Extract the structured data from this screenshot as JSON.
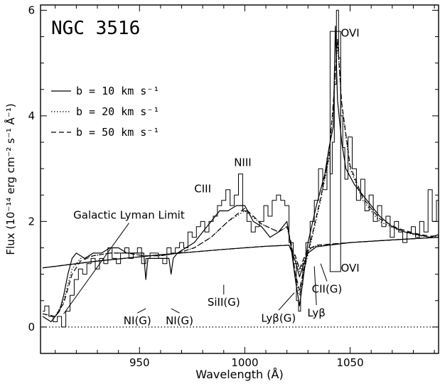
{
  "chart_data": {
    "type": "line",
    "title": "NGC 3516",
    "xlabel": "Wavelength (Å)",
    "ylabel": "Flux (10⁻¹⁴ erg cm⁻² s⁻¹ Å⁻¹)",
    "xlim": [
      903,
      1092
    ],
    "ylim": [
      -0.5,
      6.1
    ],
    "x_ticks": [
      950,
      1000,
      1050
    ],
    "y_ticks": [
      0,
      2,
      4,
      6
    ],
    "grid": false,
    "legend_placement": "upper-left",
    "legend": [
      {
        "label": "b = 10 km s⁻¹",
        "style": "solid"
      },
      {
        "label": "b = 20 km s⁻¹",
        "style": "dotted"
      },
      {
        "label": "b = 50 km s⁻¹",
        "style": "dashed"
      }
    ],
    "series": [
      {
        "style": "histogram",
        "x": [
          904,
          906,
          908,
          910,
          912,
          914,
          916,
          918,
          920,
          922,
          924,
          926,
          928,
          930,
          932,
          934,
          936,
          938,
          940,
          942,
          944,
          946,
          948,
          950,
          952,
          954,
          956,
          958,
          960,
          962,
          964,
          966,
          968,
          970,
          972,
          974,
          976,
          978,
          980,
          982,
          984,
          986,
          988,
          990,
          992,
          994,
          996,
          998,
          1000,
          1002,
          1004,
          1006,
          1008,
          1010,
          1012,
          1014,
          1016,
          1018,
          1020,
          1022,
          1024,
          1025,
          1026,
          1027,
          1028,
          1030,
          1032,
          1034,
          1036,
          1038,
          1040,
          1041,
          1042,
          1043,
          1044,
          1045,
          1046,
          1047,
          1048,
          1050,
          1052,
          1054,
          1056,
          1058,
          1060,
          1062,
          1064,
          1066,
          1068,
          1070,
          1072,
          1074,
          1076,
          1078,
          1080,
          1082,
          1084,
          1086,
          1088,
          1090,
          1092
        ],
        "y": [
          0.3,
          0.4,
          0.2,
          0.1,
          0.2,
          0.0,
          0.3,
          0.6,
          0.9,
          1.1,
          1.0,
          1.2,
          1.3,
          1.1,
          1.3,
          1.2,
          1.5,
          1.3,
          1.2,
          1.4,
          1.5,
          1.3,
          1.4,
          1.5,
          1.2,
          1.3,
          1.4,
          1.4,
          1.3,
          1.2,
          1.5,
          1.4,
          1.5,
          1.6,
          1.5,
          1.8,
          1.7,
          1.9,
          2.0,
          1.8,
          2.0,
          2.1,
          2.3,
          2.4,
          2.6,
          2.3,
          2.5,
          2.9,
          2.2,
          2.0,
          1.8,
          1.9,
          2.0,
          2.3,
          2.1,
          2.4,
          2.5,
          2.4,
          2.3,
          1.6,
          1.2,
          0.5,
          0.3,
          0.8,
          1.2,
          1.6,
          2.0,
          2.4,
          3.0,
          2.6,
          3.2,
          2.9,
          3.5,
          4.6,
          6.0,
          5.1,
          4.0,
          3.4,
          2.8,
          3.6,
          3.0,
          2.4,
          2.8,
          2.2,
          2.5,
          2.0,
          2.3,
          1.9,
          2.1,
          1.7,
          2.0,
          1.8,
          1.6,
          1.8,
          1.9,
          1.7,
          2.0,
          1.8,
          2.6,
          2.0,
          2.4
        ]
      },
      {
        "style": "solid",
        "x": [
          904,
          908,
          910,
          912,
          914,
          916,
          918,
          920,
          924,
          928,
          932,
          936,
          940,
          944,
          948,
          952,
          953,
          954,
          956,
          960,
          964,
          965,
          966,
          968,
          972,
          976,
          980,
          984,
          988,
          992,
          996,
          1000,
          1004,
          1008,
          1012,
          1016,
          1020,
          1022,
          1024,
          1026,
          1028,
          1030,
          1034,
          1038,
          1040,
          1042,
          1043,
          1044,
          1046,
          1048,
          1052,
          1056,
          1060,
          1064,
          1070,
          1076,
          1082,
          1088,
          1092
        ],
        "y": [
          0.2,
          0.1,
          0.2,
          0.3,
          0.6,
          1.0,
          1.3,
          1.4,
          1.3,
          1.4,
          1.4,
          1.5,
          1.5,
          1.4,
          1.4,
          1.4,
          0.9,
          1.3,
          1.3,
          1.3,
          1.3,
          1.0,
          1.3,
          1.4,
          1.5,
          1.6,
          1.8,
          2.0,
          2.2,
          2.2,
          2.3,
          2.3,
          2.0,
          1.9,
          1.7,
          1.8,
          2.0,
          1.5,
          0.9,
          0.4,
          1.0,
          1.6,
          2.3,
          2.9,
          3.4,
          3.8,
          5.7,
          4.3,
          3.5,
          3.0,
          2.7,
          2.5,
          2.3,
          2.1,
          1.9,
          1.8,
          1.75,
          1.7,
          1.75
        ]
      },
      {
        "style": "dotted",
        "x": [
          904,
          910,
          914,
          918,
          922,
          928,
          936,
          944,
          952,
          960,
          968,
          976,
          984,
          992,
          1000,
          1008,
          1016,
          1020,
          1022,
          1024,
          1026,
          1028,
          1032,
          1036,
          1040,
          1042,
          1044,
          1046,
          1050,
          1056,
          1064,
          1072,
          1080,
          1088,
          1092
        ],
        "y": [
          0.25,
          0.2,
          0.5,
          1.1,
          1.3,
          1.35,
          1.4,
          1.4,
          1.35,
          1.35,
          1.4,
          1.5,
          1.7,
          2.0,
          2.2,
          1.95,
          1.8,
          1.9,
          1.55,
          0.95,
          0.6,
          1.05,
          1.7,
          2.4,
          3.2,
          4.2,
          5.4,
          4.2,
          3.0,
          2.4,
          2.0,
          1.85,
          1.75,
          1.7,
          1.72
        ]
      },
      {
        "style": "dashed",
        "x": [
          904,
          910,
          914,
          918,
          922,
          928,
          936,
          944,
          952,
          960,
          968,
          976,
          984,
          992,
          1000,
          1008,
          1016,
          1020,
          1022,
          1024,
          1026,
          1028,
          1032,
          1036,
          1040,
          1042,
          1044,
          1046,
          1050,
          1056,
          1064,
          1072,
          1080,
          1088,
          1092
        ],
        "y": [
          0.25,
          0.2,
          0.45,
          1.0,
          1.25,
          1.35,
          1.4,
          1.4,
          1.35,
          1.35,
          1.4,
          1.5,
          1.7,
          2.0,
          2.25,
          1.95,
          1.8,
          1.9,
          1.6,
          1.0,
          0.7,
          1.1,
          1.75,
          2.45,
          3.25,
          4.25,
          5.45,
          4.25,
          3.05,
          2.45,
          2.05,
          1.88,
          1.78,
          1.72,
          1.73
        ]
      },
      {
        "style": "solid",
        "x": [
          904,
          930,
          960,
          990,
          1010,
          1021,
          1022,
          1024,
          1026,
          1028,
          1030,
          1034,
          1050,
          1070,
          1092
        ],
        "y": [
          1.12,
          1.25,
          1.37,
          1.47,
          1.53,
          1.55,
          1.45,
          1.25,
          0.95,
          1.2,
          1.4,
          1.52,
          1.6,
          1.65,
          1.7
        ]
      },
      {
        "style": "dotted",
        "x": [
          904,
          930,
          960,
          990,
          1010,
          1021,
          1022,
          1024,
          1026,
          1028,
          1030,
          1034,
          1050,
          1070,
          1092
        ],
        "y": [
          1.12,
          1.25,
          1.37,
          1.47,
          1.53,
          1.55,
          1.48,
          1.32,
          1.05,
          1.25,
          1.45,
          1.54,
          1.6,
          1.65,
          1.7
        ]
      },
      {
        "style": "dashed",
        "x": [
          904,
          930,
          960,
          990,
          1010,
          1021,
          1022,
          1024,
          1026,
          1028,
          1030,
          1034,
          1050,
          1070,
          1092
        ],
        "y": [
          1.12,
          1.25,
          1.37,
          1.47,
          1.53,
          1.55,
          1.49,
          1.35,
          1.1,
          1.3,
          1.47,
          1.55,
          1.6,
          1.65,
          1.7
        ]
      },
      {
        "style": "zero-dotted",
        "x": [
          904,
          1092
        ],
        "y": [
          0,
          0
        ]
      }
    ],
    "boxes": [
      {
        "x0": 1040.5,
        "x1": 1045.5,
        "y0": 1.05,
        "y1": 5.6
      }
    ],
    "annotations": [
      {
        "text": "OVI",
        "x": 1050,
        "y": 5.5
      },
      {
        "text": "NIII",
        "x": 999,
        "y": 3.05
      },
      {
        "text": "CIII",
        "x": 980,
        "y": 2.55
      },
      {
        "text": "Galactic Lyman Limit",
        "x": 945,
        "y": 2.05,
        "pointer_to": [
          914,
          0.25
        ]
      },
      {
        "text": "NI(G)",
        "x": 949,
        "y": 0.05,
        "pointer_to": [
          953,
          0.35
        ]
      },
      {
        "text": "NI(G)",
        "x": 969,
        "y": 0.05,
        "pointer_to": [
          965,
          0.35
        ]
      },
      {
        "text": "SiII(G)",
        "x": 990,
        "y": 0.4,
        "pointer_to": [
          990,
          0.8
        ]
      },
      {
        "text": "Lyβ(G)",
        "x": 1016,
        "y": 0.1,
        "pointer_to": [
          1023.5,
          0.65
        ]
      },
      {
        "text": "Lyβ",
        "x": 1034,
        "y": 0.2,
        "pointer_to": [
          1033,
          1.15
        ]
      },
      {
        "text": "CII(G)",
        "x": 1039,
        "y": 0.65,
        "pointer_to": [
          1036,
          1.2
        ]
      },
      {
        "text": "OVI",
        "x": 1050,
        "y": 1.05
      }
    ]
  }
}
